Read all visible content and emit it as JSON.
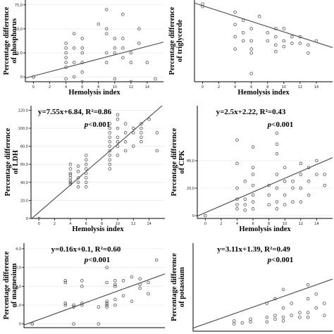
{
  "chart_data": [
    {
      "type": "scatter",
      "ylabel": [
        "Percentage difference",
        "of phosphorus"
      ],
      "xlabel": "Hemolysis index",
      "equation": "",
      "p_italic": "",
      "p_rest": "",
      "xlim": [
        -1,
        16
      ],
      "ylim": [
        -5,
        80
      ],
      "xticks": [
        0,
        2,
        4,
        6,
        8,
        10,
        12,
        14
      ],
      "yticks": [
        0,
        25,
        50,
        75
      ],
      "ytick_labels": [
        "0",
        "25,0",
        "50,0",
        "75,0"
      ],
      "fit": {
        "slope": 2.2,
        "intercept": 1
      },
      "points": [
        [
          0,
          0
        ],
        [
          0,
          0
        ],
        [
          4,
          -2
        ],
        [
          4,
          10
        ],
        [
          4,
          15
        ],
        [
          4,
          20
        ],
        [
          4,
          25
        ],
        [
          4,
          30
        ],
        [
          4,
          35
        ],
        [
          5,
          0
        ],
        [
          5,
          15
        ],
        [
          5,
          30
        ],
        [
          5,
          45
        ],
        [
          6,
          -5
        ],
        [
          6,
          5
        ],
        [
          6,
          15
        ],
        [
          6,
          25
        ],
        [
          6,
          30
        ],
        [
          6,
          40
        ],
        [
          8,
          55
        ],
        [
          9,
          -6
        ],
        [
          9,
          15
        ],
        [
          9,
          25
        ],
        [
          9,
          45
        ],
        [
          9,
          50
        ],
        [
          9,
          70
        ],
        [
          10,
          -2
        ],
        [
          10,
          25
        ],
        [
          10,
          30
        ],
        [
          10,
          40
        ],
        [
          11,
          20
        ],
        [
          11,
          30
        ],
        [
          11,
          40
        ],
        [
          11,
          65
        ],
        [
          12,
          -5
        ],
        [
          12,
          15
        ],
        [
          12,
          25
        ],
        [
          13,
          35
        ],
        [
          13,
          50
        ],
        [
          14,
          15
        ],
        [
          15,
          -2
        ]
      ]
    },
    {
      "type": "scatter",
      "ylabel": [
        "Percentage difference",
        "of triglycerde"
      ],
      "xlabel": "Hemolysis index",
      "equation": "",
      "p_italic": "",
      "p_rest": "",
      "xlim": [
        -1,
        16
      ],
      "ylim": [
        -95,
        5
      ],
      "xticks": [
        0,
        2,
        4,
        6,
        8,
        10,
        12,
        14
      ],
      "yticks": [],
      "ytick_labels": [],
      "fit": {
        "slope": -3.2,
        "intercept": -2
      },
      "points": [
        [
          0,
          0
        ],
        [
          0,
          -3
        ],
        [
          4,
          -10
        ],
        [
          4,
          -25
        ],
        [
          4,
          -40
        ],
        [
          4,
          -55
        ],
        [
          5,
          -20
        ],
        [
          5,
          -35
        ],
        [
          5,
          -45
        ],
        [
          6,
          -30
        ],
        [
          6,
          -45
        ],
        [
          6,
          -55
        ],
        [
          6,
          -60
        ],
        [
          6,
          -85
        ],
        [
          7,
          -15
        ],
        [
          8,
          -35
        ],
        [
          8,
          -45
        ],
        [
          9,
          -30
        ],
        [
          9,
          -40
        ],
        [
          9,
          -50
        ],
        [
          9,
          -58
        ],
        [
          10,
          -30
        ],
        [
          10,
          -45
        ],
        [
          10,
          -52
        ],
        [
          11,
          -40
        ],
        [
          11,
          -48
        ],
        [
          12,
          -40
        ],
        [
          12,
          -48
        ],
        [
          13,
          -50
        ],
        [
          13,
          -60
        ],
        [
          14,
          -45
        ]
      ]
    },
    {
      "type": "scatter",
      "ylabel": [
        "Percentage difference",
        "of LDH"
      ],
      "xlabel": "Hemolysis index",
      "equation": "y=7.55x+6.84, R²=0.86",
      "p_italic": "p",
      "p_rest": "<0.001",
      "xlim": [
        -1,
        16
      ],
      "ylim": [
        0,
        125
      ],
      "xticks": [
        0,
        2,
        4,
        6,
        8,
        10,
        12,
        14
      ],
      "yticks": [
        0,
        20,
        40,
        60,
        80,
        100,
        120
      ],
      "ytick_labels": [
        "0",
        "20,0",
        "40,0",
        "60,0",
        "80,0",
        "100,0",
        "120,0"
      ],
      "fit": {
        "slope": 7.55,
        "intercept": 6.84
      },
      "points": [
        [
          0,
          0
        ],
        [
          4,
          38
        ],
        [
          4,
          40
        ],
        [
          4,
          42
        ],
        [
          4,
          45
        ],
        [
          4,
          48
        ],
        [
          4,
          50
        ],
        [
          4,
          55
        ],
        [
          4,
          60
        ],
        [
          5,
          35
        ],
        [
          5,
          40
        ],
        [
          5,
          45
        ],
        [
          5,
          52
        ],
        [
          5,
          58
        ],
        [
          6,
          35
        ],
        [
          6,
          40
        ],
        [
          6,
          45
        ],
        [
          6,
          50
        ],
        [
          6,
          55
        ],
        [
          6,
          60
        ],
        [
          6,
          65
        ],
        [
          6,
          70
        ],
        [
          9,
          55
        ],
        [
          9,
          60
        ],
        [
          9,
          65
        ],
        [
          9,
          70
        ],
        [
          9,
          75
        ],
        [
          9,
          80
        ],
        [
          9,
          85
        ],
        [
          9,
          90
        ],
        [
          9,
          95
        ],
        [
          9,
          100
        ],
        [
          9,
          105
        ],
        [
          10,
          70
        ],
        [
          10,
          80
        ],
        [
          10,
          85
        ],
        [
          10,
          90
        ],
        [
          10,
          100
        ],
        [
          10,
          110
        ],
        [
          10,
          115
        ],
        [
          11,
          75
        ],
        [
          11,
          85
        ],
        [
          11,
          95
        ],
        [
          11,
          105
        ],
        [
          12,
          80
        ],
        [
          12,
          95
        ],
        [
          12,
          100
        ],
        [
          13,
          85
        ],
        [
          13,
          90
        ],
        [
          13,
          95
        ],
        [
          13,
          100
        ],
        [
          13,
          105
        ],
        [
          14,
          110
        ],
        [
          15,
          75
        ],
        [
          15,
          95
        ]
      ]
    },
    {
      "type": "scatter",
      "ylabel": [
        "Percentage difference",
        "of CPK"
      ],
      "xlabel": "Hemolysis index",
      "equation": "y=2.5x+2.22, R²=0.43",
      "p_italic": "p",
      "p_rest": "<0.001",
      "xlim": [
        -1,
        16
      ],
      "ylim": [
        -2,
        80
      ],
      "xticks": [
        0,
        2,
        4,
        6,
        8,
        10,
        12,
        14
      ],
      "yticks": [
        0,
        20,
        40
      ],
      "ytick_labels": [
        "0",
        "20,0",
        "40,0"
      ],
      "fit": {
        "slope": 2.5,
        "intercept": 2.22
      },
      "points": [
        [
          0,
          0
        ],
        [
          4,
          5
        ],
        [
          4,
          8
        ],
        [
          4,
          12
        ],
        [
          4,
          20
        ],
        [
          4,
          38
        ],
        [
          4,
          55
        ],
        [
          5,
          4
        ],
        [
          5,
          8
        ],
        [
          5,
          12
        ],
        [
          5,
          25
        ],
        [
          6,
          5
        ],
        [
          6,
          10
        ],
        [
          6,
          15
        ],
        [
          6,
          22
        ],
        [
          6,
          30
        ],
        [
          6,
          35
        ],
        [
          6,
          50
        ],
        [
          8,
          8
        ],
        [
          8,
          15
        ],
        [
          8,
          22
        ],
        [
          9,
          5
        ],
        [
          9,
          10
        ],
        [
          9,
          20
        ],
        [
          9,
          30
        ],
        [
          9,
          45
        ],
        [
          9,
          52
        ],
        [
          9,
          60
        ],
        [
          10,
          8
        ],
        [
          10,
          15
        ],
        [
          10,
          25
        ],
        [
          10,
          35
        ],
        [
          11,
          10
        ],
        [
          11,
          20
        ],
        [
          11,
          25
        ],
        [
          12,
          10
        ],
        [
          12,
          20
        ],
        [
          12,
          30
        ],
        [
          12,
          38
        ],
        [
          13,
          15
        ],
        [
          13,
          25
        ],
        [
          13,
          35
        ],
        [
          14,
          30
        ],
        [
          14,
          40
        ],
        [
          15,
          22
        ],
        [
          15,
          30
        ]
      ]
    },
    {
      "type": "scatter",
      "ylabel": [
        "Percentage difference",
        "of magnesium"
      ],
      "xlabel": "",
      "equation": "y=0.16x+0.1, R²=0.60",
      "p_italic": "p",
      "p_rest": "<0.001",
      "xlim": [
        -1,
        16
      ],
      "ylim": [
        -0.2,
        4.3
      ],
      "xticks": [],
      "yticks": [
        0,
        1,
        2,
        3,
        4
      ],
      "ytick_labels": [
        "0",
        "1,0",
        "2,0",
        "3,0",
        "4,0"
      ],
      "fit": {
        "slope": 0.16,
        "intercept": 0.1
      },
      "points": [
        [
          0,
          0
        ],
        [
          0,
          0
        ],
        [
          4,
          1.0
        ],
        [
          4,
          1.1
        ],
        [
          4,
          2.2
        ],
        [
          4,
          2.3
        ],
        [
          5,
          0
        ],
        [
          5,
          0.9
        ],
        [
          5,
          1.0
        ],
        [
          6,
          1.0
        ],
        [
          6,
          1.1
        ],
        [
          6,
          2.0
        ],
        [
          6,
          2.3
        ],
        [
          8,
          0
        ],
        [
          8,
          0.9
        ],
        [
          9,
          0.9
        ],
        [
          9,
          1.0
        ],
        [
          9,
          1.1
        ],
        [
          9,
          1.2
        ],
        [
          9,
          2.2
        ],
        [
          9,
          3.0
        ],
        [
          10,
          1.0
        ],
        [
          10,
          1.3
        ],
        [
          10,
          2.0
        ],
        [
          10,
          2.1
        ],
        [
          10,
          2.3
        ],
        [
          11,
          1.5
        ],
        [
          11,
          2.3
        ],
        [
          12,
          1.2
        ],
        [
          12,
          2.5
        ],
        [
          13,
          1.9
        ],
        [
          13,
          2.1
        ],
        [
          13,
          2.4
        ],
        [
          14,
          1.6
        ],
        [
          14,
          2.2
        ],
        [
          15,
          3.4
        ]
      ]
    },
    {
      "type": "scatter",
      "ylabel": [
        "Percentage difference",
        "of potassium"
      ],
      "xlabel": "",
      "equation": "y=3.11x+1.39, R²=0.49",
      "p_italic": "p",
      "p_rest": "<0.001",
      "xlim": [
        -1,
        16
      ],
      "ylim": [
        -5,
        90
      ],
      "xticks": [],
      "yticks": [],
      "ytick_labels": [],
      "fit": {
        "slope": 3.11,
        "intercept": 1.39
      },
      "points": [
        [
          4,
          3
        ],
        [
          4,
          6
        ],
        [
          5,
          4
        ],
        [
          6,
          5
        ],
        [
          6,
          8
        ],
        [
          8,
          5
        ],
        [
          8,
          10
        ],
        [
          8,
          25
        ],
        [
          9,
          8
        ],
        [
          9,
          12
        ],
        [
          9,
          30
        ],
        [
          10,
          6
        ],
        [
          10,
          10
        ],
        [
          10,
          20
        ],
        [
          10,
          40
        ],
        [
          11,
          12
        ],
        [
          11,
          25
        ],
        [
          12,
          10
        ],
        [
          12,
          15
        ],
        [
          13,
          10
        ],
        [
          13,
          15
        ],
        [
          13,
          30
        ],
        [
          13,
          45
        ],
        [
          14,
          20
        ],
        [
          14,
          35
        ],
        [
          15,
          12
        ],
        [
          15,
          25
        ]
      ]
    }
  ]
}
